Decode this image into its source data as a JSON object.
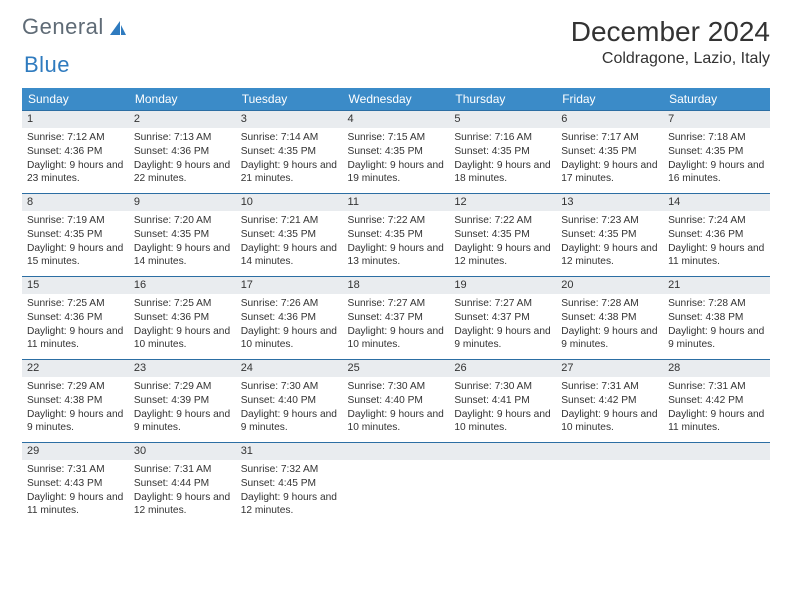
{
  "brand": {
    "word1": "General",
    "word2": "Blue"
  },
  "title": {
    "month": "December 2024",
    "location": "Coldragone, Lazio, Italy"
  },
  "colors": {
    "header_bg": "#3b8bc8",
    "header_text": "#ffffff",
    "row_border": "#2c6ea3",
    "daynum_bg": "#e9ecef",
    "text": "#333333",
    "logo_gray": "#5f6b76",
    "logo_blue": "#2f7bbf",
    "background": "#ffffff"
  },
  "weekdays": [
    "Sunday",
    "Monday",
    "Tuesday",
    "Wednesday",
    "Thursday",
    "Friday",
    "Saturday"
  ],
  "days": [
    {
      "n": "1",
      "sunrise": "Sunrise: 7:12 AM",
      "sunset": "Sunset: 4:36 PM",
      "daylight": "Daylight: 9 hours and 23 minutes."
    },
    {
      "n": "2",
      "sunrise": "Sunrise: 7:13 AM",
      "sunset": "Sunset: 4:36 PM",
      "daylight": "Daylight: 9 hours and 22 minutes."
    },
    {
      "n": "3",
      "sunrise": "Sunrise: 7:14 AM",
      "sunset": "Sunset: 4:35 PM",
      "daylight": "Daylight: 9 hours and 21 minutes."
    },
    {
      "n": "4",
      "sunrise": "Sunrise: 7:15 AM",
      "sunset": "Sunset: 4:35 PM",
      "daylight": "Daylight: 9 hours and 19 minutes."
    },
    {
      "n": "5",
      "sunrise": "Sunrise: 7:16 AM",
      "sunset": "Sunset: 4:35 PM",
      "daylight": "Daylight: 9 hours and 18 minutes."
    },
    {
      "n": "6",
      "sunrise": "Sunrise: 7:17 AM",
      "sunset": "Sunset: 4:35 PM",
      "daylight": "Daylight: 9 hours and 17 minutes."
    },
    {
      "n": "7",
      "sunrise": "Sunrise: 7:18 AM",
      "sunset": "Sunset: 4:35 PM",
      "daylight": "Daylight: 9 hours and 16 minutes."
    },
    {
      "n": "8",
      "sunrise": "Sunrise: 7:19 AM",
      "sunset": "Sunset: 4:35 PM",
      "daylight": "Daylight: 9 hours and 15 minutes."
    },
    {
      "n": "9",
      "sunrise": "Sunrise: 7:20 AM",
      "sunset": "Sunset: 4:35 PM",
      "daylight": "Daylight: 9 hours and 14 minutes."
    },
    {
      "n": "10",
      "sunrise": "Sunrise: 7:21 AM",
      "sunset": "Sunset: 4:35 PM",
      "daylight": "Daylight: 9 hours and 14 minutes."
    },
    {
      "n": "11",
      "sunrise": "Sunrise: 7:22 AM",
      "sunset": "Sunset: 4:35 PM",
      "daylight": "Daylight: 9 hours and 13 minutes."
    },
    {
      "n": "12",
      "sunrise": "Sunrise: 7:22 AM",
      "sunset": "Sunset: 4:35 PM",
      "daylight": "Daylight: 9 hours and 12 minutes."
    },
    {
      "n": "13",
      "sunrise": "Sunrise: 7:23 AM",
      "sunset": "Sunset: 4:35 PM",
      "daylight": "Daylight: 9 hours and 12 minutes."
    },
    {
      "n": "14",
      "sunrise": "Sunrise: 7:24 AM",
      "sunset": "Sunset: 4:36 PM",
      "daylight": "Daylight: 9 hours and 11 minutes."
    },
    {
      "n": "15",
      "sunrise": "Sunrise: 7:25 AM",
      "sunset": "Sunset: 4:36 PM",
      "daylight": "Daylight: 9 hours and 11 minutes."
    },
    {
      "n": "16",
      "sunrise": "Sunrise: 7:25 AM",
      "sunset": "Sunset: 4:36 PM",
      "daylight": "Daylight: 9 hours and 10 minutes."
    },
    {
      "n": "17",
      "sunrise": "Sunrise: 7:26 AM",
      "sunset": "Sunset: 4:36 PM",
      "daylight": "Daylight: 9 hours and 10 minutes."
    },
    {
      "n": "18",
      "sunrise": "Sunrise: 7:27 AM",
      "sunset": "Sunset: 4:37 PM",
      "daylight": "Daylight: 9 hours and 10 minutes."
    },
    {
      "n": "19",
      "sunrise": "Sunrise: 7:27 AM",
      "sunset": "Sunset: 4:37 PM",
      "daylight": "Daylight: 9 hours and 9 minutes."
    },
    {
      "n": "20",
      "sunrise": "Sunrise: 7:28 AM",
      "sunset": "Sunset: 4:38 PM",
      "daylight": "Daylight: 9 hours and 9 minutes."
    },
    {
      "n": "21",
      "sunrise": "Sunrise: 7:28 AM",
      "sunset": "Sunset: 4:38 PM",
      "daylight": "Daylight: 9 hours and 9 minutes."
    },
    {
      "n": "22",
      "sunrise": "Sunrise: 7:29 AM",
      "sunset": "Sunset: 4:38 PM",
      "daylight": "Daylight: 9 hours and 9 minutes."
    },
    {
      "n": "23",
      "sunrise": "Sunrise: 7:29 AM",
      "sunset": "Sunset: 4:39 PM",
      "daylight": "Daylight: 9 hours and 9 minutes."
    },
    {
      "n": "24",
      "sunrise": "Sunrise: 7:30 AM",
      "sunset": "Sunset: 4:40 PM",
      "daylight": "Daylight: 9 hours and 9 minutes."
    },
    {
      "n": "25",
      "sunrise": "Sunrise: 7:30 AM",
      "sunset": "Sunset: 4:40 PM",
      "daylight": "Daylight: 9 hours and 10 minutes."
    },
    {
      "n": "26",
      "sunrise": "Sunrise: 7:30 AM",
      "sunset": "Sunset: 4:41 PM",
      "daylight": "Daylight: 9 hours and 10 minutes."
    },
    {
      "n": "27",
      "sunrise": "Sunrise: 7:31 AM",
      "sunset": "Sunset: 4:42 PM",
      "daylight": "Daylight: 9 hours and 10 minutes."
    },
    {
      "n": "28",
      "sunrise": "Sunrise: 7:31 AM",
      "sunset": "Sunset: 4:42 PM",
      "daylight": "Daylight: 9 hours and 11 minutes."
    },
    {
      "n": "29",
      "sunrise": "Sunrise: 7:31 AM",
      "sunset": "Sunset: 4:43 PM",
      "daylight": "Daylight: 9 hours and 11 minutes."
    },
    {
      "n": "30",
      "sunrise": "Sunrise: 7:31 AM",
      "sunset": "Sunset: 4:44 PM",
      "daylight": "Daylight: 9 hours and 12 minutes."
    },
    {
      "n": "31",
      "sunrise": "Sunrise: 7:32 AM",
      "sunset": "Sunset: 4:45 PM",
      "daylight": "Daylight: 9 hours and 12 minutes."
    }
  ],
  "layout": {
    "weeks": 5,
    "cols": 7,
    "trailing_empty": 4
  }
}
